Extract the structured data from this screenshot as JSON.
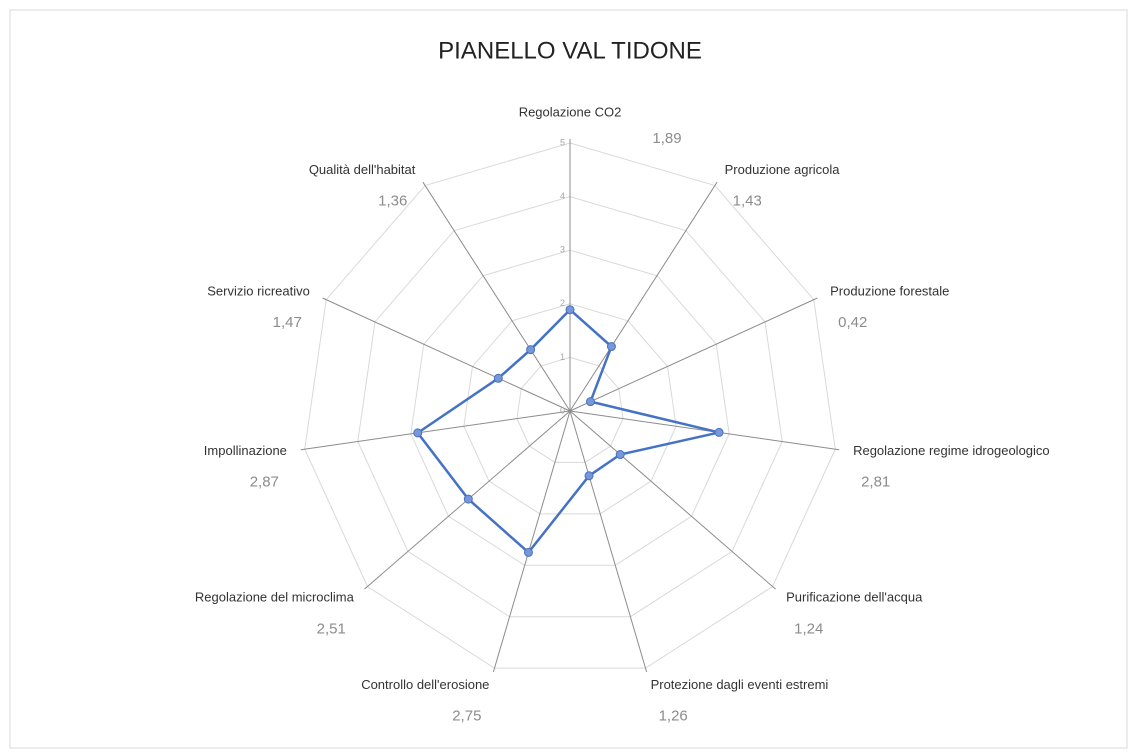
{
  "chart_data": {
    "type": "radar",
    "title": "PIANELLO  VAL TIDONE",
    "categories": [
      "Regolazione CO2",
      "Produzione agricola",
      "Produzione forestale",
      "Regolazione regime idrogeologico",
      "Purificazione dell'acqua",
      "Protezione dagli eventi estremi",
      "Controllo dell'erosione",
      "Regolazione del microclima",
      "Impollinazione",
      "Servizio ricreativo",
      "Qualità dell'habitat"
    ],
    "values": [
      1.89,
      1.43,
      0.42,
      2.81,
      1.24,
      1.26,
      2.75,
      2.51,
      2.87,
      1.47,
      1.36
    ],
    "value_labels": [
      "1,89",
      "1,43",
      "0,42",
      "2,81",
      "1,24",
      "1,26",
      "2,75",
      "2,51",
      "2,87",
      "1,47",
      "1,36"
    ],
    "color": "#4472c4",
    "ylim": [
      0,
      5
    ],
    "yticks": [
      0,
      1,
      2,
      3,
      4,
      5
    ],
    "grid": true
  }
}
